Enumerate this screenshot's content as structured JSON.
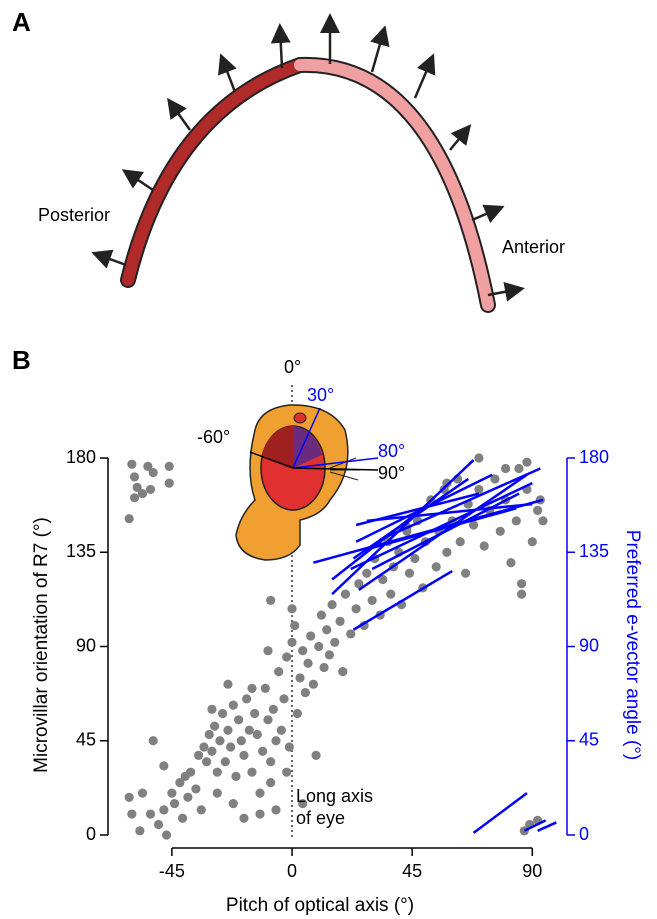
{
  "panel_a": {
    "label": "A",
    "posterior": "Posterior",
    "anterior": "Anterior"
  },
  "chart_data": {
    "type": "scatter",
    "panel_label": "B",
    "xlabel": "Pitch of optical axis (°)",
    "ylabel": "Microvillar orientation of R7 (°)",
    "y2label": "Preferred e-vector angle (°)",
    "xlim": [
      -62,
      100
    ],
    "ylim": [
      0,
      180
    ],
    "y2lim": [
      0,
      180
    ],
    "xticks": [
      -45,
      0,
      45,
      90
    ],
    "yticks": [
      0,
      45,
      90,
      135,
      180
    ],
    "y2ticks": [
      0,
      45,
      90,
      135,
      180
    ],
    "color": "#808080",
    "segment_color": "#0000ff",
    "annotations": {
      "zero": "0°",
      "thirty": "30°",
      "minus_sixty": "-60°",
      "eighty": "80°",
      "ninety": "90°",
      "long_axis_1": "Long axis",
      "long_axis_2": "of eye"
    },
    "points": [
      [
        -60,
        177
      ],
      [
        -54,
        176
      ],
      [
        -46,
        176
      ],
      [
        -59,
        171
      ],
      [
        -52,
        173
      ],
      [
        -58,
        166
      ],
      [
        -53,
        165
      ],
      [
        -46,
        168
      ],
      [
        -59,
        161
      ],
      [
        -61,
        151
      ],
      [
        -56,
        163
      ],
      [
        -61,
        18
      ],
      [
        -57,
        2
      ],
      [
        -52,
        45
      ],
      [
        -53,
        10
      ],
      [
        -50,
        5
      ],
      [
        -48,
        12
      ],
      [
        -47,
        0
      ],
      [
        -45,
        20
      ],
      [
        -44,
        15
      ],
      [
        -42,
        25
      ],
      [
        -41,
        8
      ],
      [
        -40,
        28
      ],
      [
        -38,
        30
      ],
      [
        -36,
        22
      ],
      [
        -35,
        38
      ],
      [
        -34,
        12
      ],
      [
        -33,
        42
      ],
      [
        -32,
        35
      ],
      [
        -31,
        48
      ],
      [
        -30,
        40
      ],
      [
        -29,
        52
      ],
      [
        -28,
        30
      ],
      [
        -27,
        45
      ],
      [
        -26,
        58
      ],
      [
        -25,
        35
      ],
      [
        -24,
        50
      ],
      [
        -23,
        42
      ],
      [
        -22,
        62
      ],
      [
        -21,
        28
      ],
      [
        -20,
        55
      ],
      [
        -19,
        45
      ],
      [
        -18,
        38
      ],
      [
        -17,
        65
      ],
      [
        -16,
        50
      ],
      [
        -15,
        30
      ],
      [
        -14,
        58
      ],
      [
        -13,
        48
      ],
      [
        -12,
        20
      ],
      [
        -11,
        40
      ],
      [
        -10,
        70
      ],
      [
        -9,
        55
      ],
      [
        -8,
        35
      ],
      [
        -7,
        60
      ],
      [
        -6,
        12
      ],
      [
        -5,
        78
      ],
      [
        -4,
        50
      ],
      [
        -3,
        65
      ],
      [
        -2,
        85
      ],
      [
        -1,
        42
      ],
      [
        0,
        92
      ],
      [
        1,
        100
      ],
      [
        2,
        58
      ],
      [
        3,
        75
      ],
      [
        4,
        88
      ],
      [
        5,
        68
      ],
      [
        6,
        82
      ],
      [
        7,
        95
      ],
      [
        8,
        72
      ],
      [
        9,
        38
      ],
      [
        10,
        90
      ],
      [
        11,
        105
      ],
      [
        12,
        80
      ],
      [
        13,
        98
      ],
      [
        14,
        86
      ],
      [
        15,
        110
      ],
      [
        16,
        92
      ],
      [
        18,
        102
      ],
      [
        19,
        78
      ],
      [
        20,
        115
      ],
      [
        22,
        96
      ],
      [
        24,
        108
      ],
      [
        25,
        120
      ],
      [
        27,
        100
      ],
      [
        28,
        125
      ],
      [
        30,
        112
      ],
      [
        31,
        132
      ],
      [
        33,
        105
      ],
      [
        34,
        122
      ],
      [
        36,
        140
      ],
      [
        37,
        115
      ],
      [
        38,
        128
      ],
      [
        40,
        135
      ],
      [
        41,
        110
      ],
      [
        43,
        145
      ],
      [
        44,
        125
      ],
      [
        46,
        132
      ],
      [
        47,
        150
      ],
      [
        49,
        118
      ],
      [
        50,
        140
      ],
      [
        52,
        160
      ],
      [
        54,
        128
      ],
      [
        55,
        145
      ],
      [
        57,
        165
      ],
      [
        58,
        135
      ],
      [
        60,
        150
      ],
      [
        62,
        170
      ],
      [
        63,
        140
      ],
      [
        65,
        125
      ],
      [
        66,
        158
      ],
      [
        68,
        148
      ],
      [
        70,
        165
      ],
      [
        72,
        138
      ],
      [
        74,
        155
      ],
      [
        76,
        170
      ],
      [
        78,
        145
      ],
      [
        80,
        160
      ],
      [
        82,
        130
      ],
      [
        84,
        150
      ],
      [
        85,
        175
      ],
      [
        86,
        120
      ],
      [
        88,
        165
      ],
      [
        90,
        140
      ],
      [
        92,
        155
      ],
      [
        93,
        160
      ],
      [
        94,
        150
      ],
      [
        86,
        115
      ],
      [
        87,
        2
      ],
      [
        89,
        5
      ],
      [
        92,
        7
      ],
      [
        -60,
        10
      ],
      [
        -56,
        20
      ],
      [
        -48,
        33
      ],
      [
        -39,
        18
      ],
      [
        -28,
        20
      ],
      [
        -22,
        15
      ],
      [
        -18,
        8
      ],
      [
        -12,
        10
      ],
      [
        -8,
        25
      ],
      [
        -2,
        30
      ],
      [
        -6,
        45
      ],
      [
        -15,
        70
      ],
      [
        -24,
        72
      ],
      [
        -30,
        60
      ],
      [
        -9,
        88
      ],
      [
        -8,
        112
      ],
      [
        0,
        108
      ],
      [
        4,
        15
      ],
      [
        43,
        147
      ],
      [
        58,
        168
      ],
      [
        70,
        180
      ],
      [
        80,
        175
      ],
      [
        88,
        178
      ]
    ],
    "segments": [
      {
        "x": [
          8,
          94
        ],
        "y": [
          130,
          160
        ]
      },
      {
        "x": [
          15,
          68
        ],
        "y": [
          115,
          179
        ]
      },
      {
        "x": [
          25,
          88
        ],
        "y": [
          117,
          172
        ]
      },
      {
        "x": [
          22,
          90
        ],
        "y": [
          127,
          168
        ]
      },
      {
        "x": [
          24,
          75
        ],
        "y": [
          140,
          172
        ]
      },
      {
        "x": [
          30,
          85
        ],
        "y": [
          127,
          163
        ]
      },
      {
        "x": [
          27,
          84
        ],
        "y": [
          136,
          156
        ]
      },
      {
        "x": [
          33,
          93
        ],
        "y": [
          141,
          175
        ]
      },
      {
        "x": [
          23,
          66
        ],
        "y": [
          132,
          170
        ]
      },
      {
        "x": [
          28,
          90
        ],
        "y": [
          150,
          158
        ]
      },
      {
        "x": [
          24,
          70
        ],
        "y": [
          148,
          163
        ]
      },
      {
        "x": [
          23,
          60
        ],
        "y": [
          98,
          126
        ]
      },
      {
        "x": [
          15,
          48
        ],
        "y": [
          122,
          155
        ]
      },
      {
        "x": [
          68,
          88
        ],
        "y": [
          1,
          20
        ]
      },
      {
        "x": [
          87,
          95
        ],
        "y": [
          2,
          7
        ]
      },
      {
        "x": [
          92,
          99
        ],
        "y": [
          2,
          6
        ]
      }
    ]
  }
}
